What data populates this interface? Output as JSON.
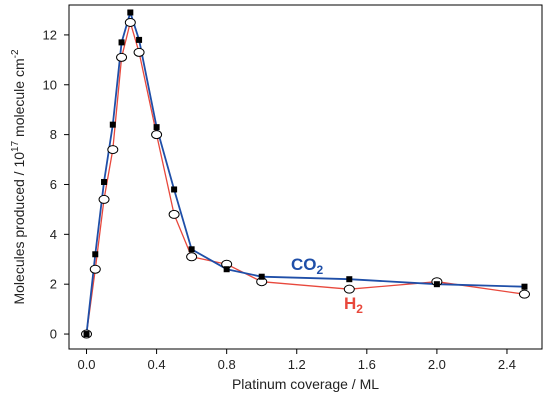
{
  "chart_data": {
    "type": "line",
    "xlabel": "Platinum coverage / ML",
    "ylabel": {
      "text": "Molecules produced / 10",
      "sup": "17",
      "text2": " molecule cm",
      "sup2": "-2"
    },
    "xlim": [
      -0.1,
      2.6
    ],
    "ylim": [
      -0.6,
      13.2
    ],
    "xticks": [
      "0.0",
      "0.4",
      "0.8",
      "1.2",
      "1.6",
      "2.0",
      "2.4"
    ],
    "yticks": [
      "0",
      "2",
      "4",
      "6",
      "8",
      "10",
      "12"
    ],
    "grid": false,
    "series": [
      {
        "name": "CO",
        "subscript": "2",
        "color": "#1f4fa8",
        "marker": "square-filled",
        "x": [
          0.0,
          0.05,
          0.1,
          0.15,
          0.2,
          0.25,
          0.3,
          0.4,
          0.5,
          0.6,
          0.8,
          1.0,
          1.5,
          2.0,
          2.5
        ],
        "y": [
          0.0,
          3.2,
          6.1,
          8.4,
          11.7,
          12.9,
          11.8,
          8.3,
          5.8,
          3.4,
          2.6,
          2.3,
          2.2,
          2.0,
          1.9
        ]
      },
      {
        "name": "H",
        "subscript": "2",
        "color": "#e8483c",
        "marker": "circle-open",
        "x": [
          0.0,
          0.05,
          0.1,
          0.15,
          0.2,
          0.25,
          0.3,
          0.4,
          0.5,
          0.6,
          0.8,
          1.0,
          1.5,
          2.0,
          2.5
        ],
        "y": [
          0.0,
          2.6,
          5.4,
          7.4,
          11.1,
          12.5,
          11.3,
          8.0,
          4.8,
          3.1,
          2.8,
          2.1,
          1.8,
          2.1,
          1.6
        ]
      }
    ]
  }
}
